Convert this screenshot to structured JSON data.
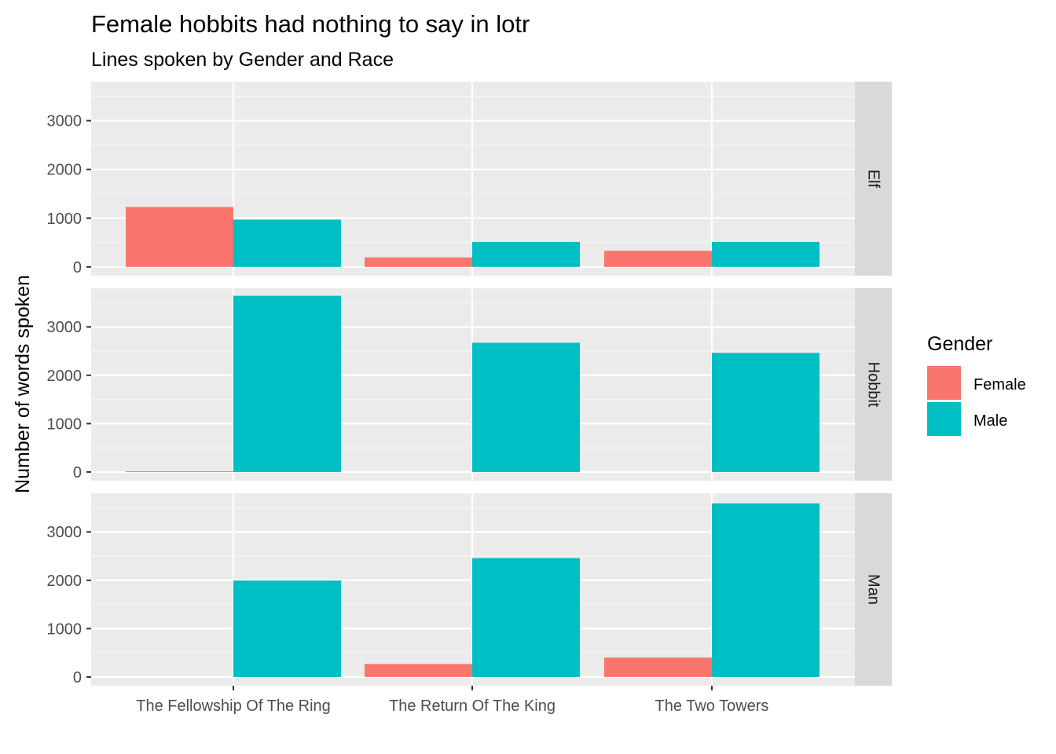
{
  "chart_data": {
    "type": "bar",
    "title": "Female hobbits had nothing to say in lotr",
    "subtitle": "Lines spoken by Gender and Race",
    "xlabel": "",
    "ylabel": "Number of words spoken",
    "categories": [
      "The Fellowship Of The Ring",
      "The Return Of The King",
      "The Two Towers"
    ],
    "yticks": [
      0,
      1000,
      2000,
      3000
    ],
    "ylim": [
      -180,
      3800
    ],
    "grid": true,
    "legend": {
      "title": "Gender",
      "position": "right",
      "entries": [
        {
          "name": "Female",
          "color": "#F8766D"
        },
        {
          "name": "Male",
          "color": "#00BFC4"
        }
      ]
    },
    "facets": [
      {
        "label": "Elf",
        "series": [
          {
            "name": "Female",
            "values": [
              1229,
              196,
              331
            ]
          },
          {
            "name": "Male",
            "values": [
              971,
              513,
              513
            ]
          }
        ]
      },
      {
        "label": "Hobbit",
        "series": [
          {
            "name": "Female",
            "values": [
              14,
              0,
              0
            ]
          },
          {
            "name": "Male",
            "values": [
              3644,
              2673,
              2463
            ]
          }
        ]
      },
      {
        "label": "Man",
        "series": [
          {
            "name": "Female",
            "values": [
              0,
              268,
              401
            ]
          },
          {
            "name": "Male",
            "values": [
              1995,
              2459,
              3589
            ]
          }
        ]
      }
    ]
  }
}
